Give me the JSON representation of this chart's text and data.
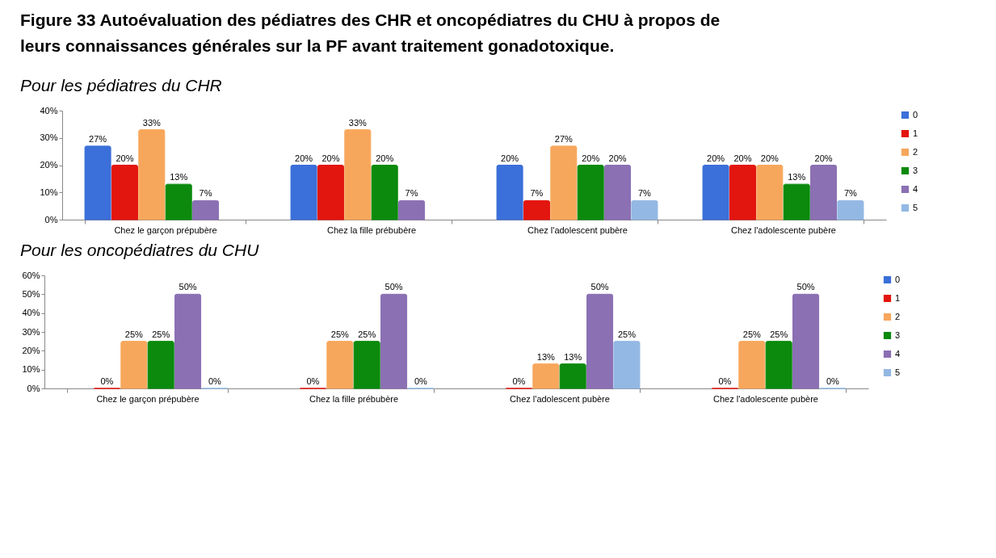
{
  "chart_data": [
    {
      "type": "bar",
      "title": "Figure 33 Autoévaluation des pédiatres des CHR et oncopédiatres du CHU à propos de leurs connaissances générales sur la PF avant traitement gonadotoxique.",
      "subtitle": "Pour les pédiatres du CHR",
      "categories": [
        "Chez le garçon prépubère",
        "Chez la fille prébubère",
        "Chez l'adolescent pubère",
        "Chez l'adolescente pubère"
      ],
      "series": [
        {
          "name": "0",
          "color": "#3b6fd9",
          "values": [
            27,
            20,
            20,
            20
          ],
          "value_labels": [
            "27%",
            "20%",
            "20%",
            "20%"
          ]
        },
        {
          "name": "1",
          "color": "#e3150f",
          "values": [
            20,
            20,
            7,
            20
          ],
          "value_labels": [
            "20%",
            "20%",
            "7%",
            "20%"
          ]
        },
        {
          "name": "2",
          "color": "#f7a75c",
          "values": [
            33,
            33,
            27,
            20
          ],
          "value_labels": [
            "33%",
            "33%",
            "27%",
            "20%"
          ]
        },
        {
          "name": "3",
          "color": "#0b8a0d",
          "values": [
            13,
            20,
            20,
            13
          ],
          "value_labels": [
            "13%",
            "20%",
            "20%",
            "13%"
          ]
        },
        {
          "name": "4",
          "color": "#8b70b3",
          "values": [
            7,
            7,
            20,
            20
          ],
          "value_labels": [
            "7%",
            "7%",
            "20%",
            "20%"
          ]
        },
        {
          "name": "5",
          "color": "#93b8e3",
          "values": [
            null,
            null,
            7,
            7
          ],
          "value_labels": [
            null,
            null,
            "7%",
            "7%"
          ]
        }
      ],
      "ylim": [
        0,
        40
      ],
      "yticks": [
        {
          "value": 0,
          "label": "0%"
        },
        {
          "value": 10,
          "label": "10%"
        },
        {
          "value": 20,
          "label": "20%"
        },
        {
          "value": 30,
          "label": "30%"
        },
        {
          "value": 40,
          "label": "40%"
        }
      ],
      "legend": "right"
    },
    {
      "type": "bar",
      "title": "Pour les oncopédiatres du CHU",
      "categories": [
        "Chez le garçon prépubère",
        "Chez la fille prébubère",
        "Chez l'adolescent pubère",
        "Chez l'adolescente pubère"
      ],
      "series": [
        {
          "name": "0",
          "color": "#3b6fd9",
          "values": [
            null,
            null,
            null,
            null
          ],
          "value_labels": [
            null,
            null,
            null,
            null
          ]
        },
        {
          "name": "1",
          "color": "#e3150f",
          "values": [
            0,
            0,
            0,
            0
          ],
          "value_labels": [
            "0%",
            "0%",
            "0%",
            "0%"
          ]
        },
        {
          "name": "2",
          "color": "#f7a75c",
          "values": [
            25,
            25,
            13,
            25
          ],
          "value_labels": [
            "25%",
            "25%",
            "13%",
            "25%"
          ]
        },
        {
          "name": "3",
          "color": "#0b8a0d",
          "values": [
            25,
            25,
            13,
            25
          ],
          "value_labels": [
            "25%",
            "25%",
            "13%",
            "25%"
          ]
        },
        {
          "name": "4",
          "color": "#8b70b3",
          "values": [
            50,
            50,
            50,
            50
          ],
          "value_labels": [
            "50%",
            "50%",
            "50%",
            "50%"
          ]
        },
        {
          "name": "5",
          "color": "#93b8e3",
          "values": [
            0,
            0,
            25,
            0
          ],
          "value_labels": [
            "0%",
            "0%",
            "25%",
            "0%"
          ]
        }
      ],
      "ylim": [
        0,
        60
      ],
      "yticks": [
        {
          "value": 0,
          "label": "0%"
        },
        {
          "value": 10,
          "label": "10%"
        },
        {
          "value": 20,
          "label": "20%"
        },
        {
          "value": 30,
          "label": "30%"
        },
        {
          "value": 40,
          "label": "40%"
        },
        {
          "value": 50,
          "label": "50%"
        },
        {
          "value": 60,
          "label": "60%"
        }
      ],
      "legend": "right"
    }
  ]
}
